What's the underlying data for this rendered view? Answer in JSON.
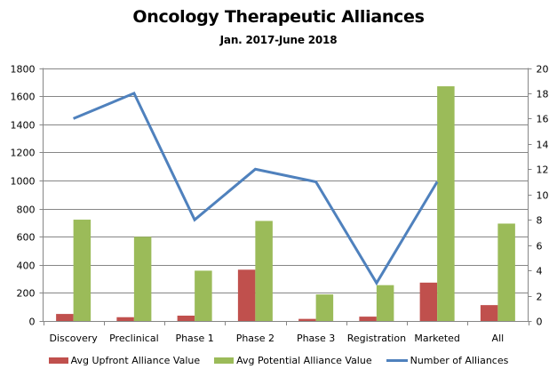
{
  "chart_data": {
    "type": "bar",
    "title": "Oncology Therapeutic Alliances",
    "subtitle": "Jan. 2017-June 2018",
    "xlabel": "",
    "ylabel": "",
    "ylabel_right": "",
    "categories": [
      "Discovery",
      "Preclinical",
      "Phase 1",
      "Phase 2",
      "Phase 3",
      "Registration",
      "Marketed",
      "All"
    ],
    "series": [
      {
        "name": "Avg Upfront Alliance Value",
        "type": "bar",
        "axis": "left",
        "color": "#C0504D",
        "values": [
          50,
          27,
          38,
          365,
          15,
          31,
          273,
          113
        ]
      },
      {
        "name": "Avg Potential Alliance Value",
        "type": "bar",
        "axis": "left",
        "color": "#9BBB59",
        "values": [
          721,
          599,
          358,
          712,
          189,
          255,
          1670,
          693
        ]
      },
      {
        "name": "Number of Alliances",
        "type": "line",
        "axis": "right",
        "color": "#4F81BD",
        "values": [
          16,
          18,
          8,
          12,
          11,
          3,
          11,
          null
        ]
      }
    ],
    "ylim": [
      0,
      1800
    ],
    "yticks": [
      0,
      200,
      400,
      600,
      800,
      1000,
      1200,
      1400,
      1600,
      1800
    ],
    "ylim_right": [
      0,
      20
    ],
    "yticks_right": [
      0,
      2,
      4,
      6,
      8,
      10,
      12,
      14,
      16,
      18,
      20
    ],
    "grid": true,
    "legend_position": "bottom"
  },
  "legend": {
    "items": [
      {
        "label": "Avg Upfront Alliance Value",
        "color": "#C0504D",
        "kind": "bar"
      },
      {
        "label": "Avg Potential Alliance Value",
        "color": "#9BBB59",
        "kind": "bar"
      },
      {
        "label": "Number of Alliances",
        "color": "#4F81BD",
        "kind": "line"
      }
    ]
  },
  "colors": {
    "gridline": "#868686",
    "axis": "#868686"
  }
}
